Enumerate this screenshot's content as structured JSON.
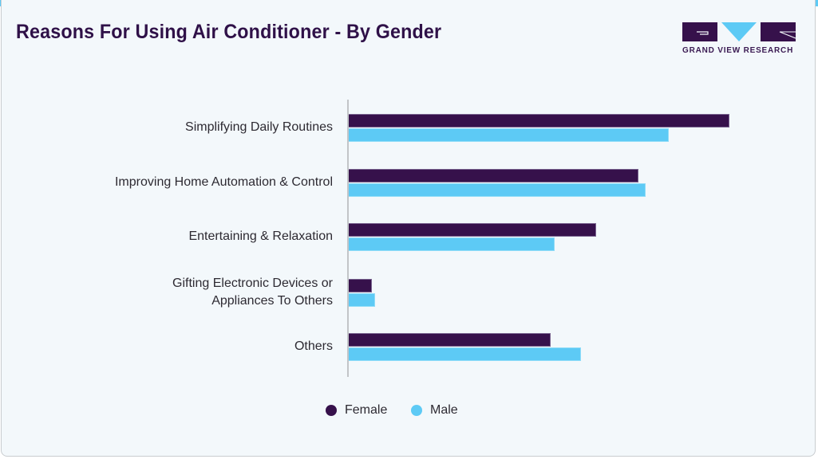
{
  "header": {
    "title": "Reasons For Using Air Conditioner - By Gender",
    "brand": "GRAND VIEW RESEARCH"
  },
  "colors": {
    "female": "#36114b",
    "male": "#5dcaf5",
    "title": "#2f1148",
    "background": "#f3f8fb",
    "accent_bar": "#5dcaf5"
  },
  "legend": [
    {
      "label": "Female",
      "color": "#36114b"
    },
    {
      "label": "Male",
      "color": "#5dcaf5"
    }
  ],
  "chart_data": {
    "type": "bar",
    "orientation": "horizontal",
    "title": "Reasons For Using Air Conditioner - By Gender",
    "xlabel": "",
    "ylabel": "",
    "categories": [
      "Simplifying Daily Routines",
      "Improving Home Automation & Control",
      "Entertaining & Relaxation",
      "Gifting Electronic Devices or Appliances To Others",
      "Others"
    ],
    "series": [
      {
        "name": "Female",
        "color": "#36114b",
        "values": [
          100,
          76,
          65,
          6,
          53
        ]
      },
      {
        "name": "Male",
        "color": "#5dcaf5",
        "values": [
          84,
          78,
          54,
          7,
          61
        ]
      }
    ],
    "value_note": "No value axis shown; values are relative bar lengths (longest bar = 100)",
    "xlim": [
      0,
      100
    ],
    "grid": false,
    "legend_position": "bottom"
  }
}
